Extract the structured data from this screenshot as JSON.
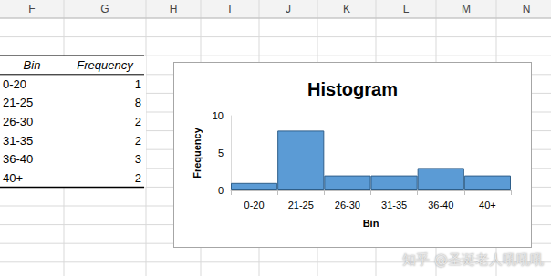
{
  "columns": [
    "F",
    "G",
    "H",
    "I",
    "J",
    "K",
    "L",
    "M",
    "N"
  ],
  "table": {
    "header": [
      "Bin",
      "Frequency"
    ],
    "rows": [
      [
        "0-20",
        1
      ],
      [
        "21-25",
        8
      ],
      [
        "26-30",
        2
      ],
      [
        "31-35",
        2
      ],
      [
        "36-40",
        3
      ],
      [
        "40+",
        2
      ]
    ]
  },
  "chart_data": {
    "type": "bar",
    "title": "Histogram",
    "xlabel": "Bin",
    "ylabel": "Frequency",
    "categories": [
      "0-20",
      "21-25",
      "26-30",
      "31-35",
      "36-40",
      "40+"
    ],
    "values": [
      1,
      8,
      2,
      2,
      3,
      2
    ],
    "color": "#5b9bd5",
    "ylim": [
      0,
      10
    ],
    "yticks": [
      0,
      5,
      10
    ],
    "grid": false
  },
  "watermark": "知乎 @圣诞老人吼吼吼"
}
